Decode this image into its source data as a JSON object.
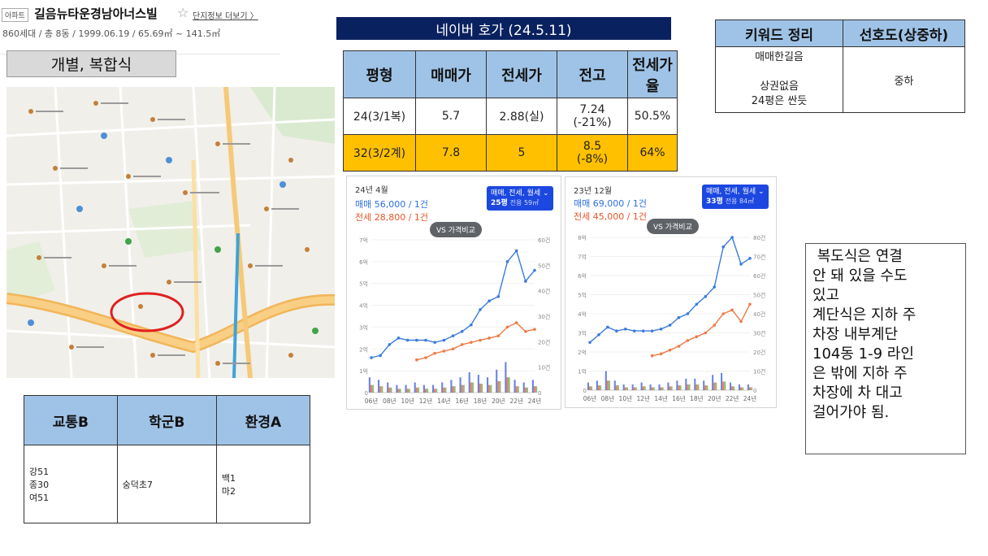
{
  "header": {
    "tag": "아파트",
    "apt_name": "길음뉴타운경남아너스빌",
    "star": "☆",
    "more_link": "단지정보 더보기 〉",
    "info": "860세대 / 총 8동 / 1999.06.19 / 65.69㎡ ~ 141.5㎡"
  },
  "type_label": "개별, 복합식",
  "map": {
    "labels": [
      "길음뉴타운경남아너스빌"
    ]
  },
  "scores": {
    "headers": [
      "교통B",
      "학군B",
      "환경A"
    ],
    "transport_lines": [
      "강51",
      "종30",
      "여51"
    ],
    "school": "숭덕초7",
    "env_lines": [
      "백1",
      "마2"
    ]
  },
  "naver_header": "네이버 호가 (24.5.11)",
  "price_table": {
    "headers": [
      "평형",
      "매매가",
      "전세가",
      "전고",
      "전세가율"
    ],
    "rows": [
      {
        "pyeong": "24(3/1복)",
        "sale": "5.7",
        "jeonse": "2.88(실)",
        "high": "7.24\n(-21%)",
        "ratio": "50.5%"
      },
      {
        "pyeong": "32(3/2계)",
        "sale": "7.8",
        "jeonse": "5",
        "high": "8.5\n(-8%)",
        "ratio": "64%"
      }
    ]
  },
  "keyword_table": {
    "headers": [
      "키워드 정리",
      "선호도(상중하)"
    ],
    "keywords": [
      "매매한길음",
      "",
      "상권없음",
      "24평은 싼듯"
    ],
    "preference": "중하"
  },
  "charts": [
    {
      "period": "24년 4월",
      "sale_line": "매매 56,000 / 1건",
      "rent_line": "전세 28,800 / 1건",
      "filter": "매매, 전세, 월세",
      "size": "25평",
      "size_detail": "전용 59㎡",
      "vs_label": "VS 가격비교",
      "chart_data": {
        "type": "line",
        "x": [
          "06년",
          "07년",
          "08년",
          "09년",
          "10년",
          "11년",
          "12년",
          "13년",
          "14년",
          "15년",
          "16년",
          "17년",
          "18년",
          "19년",
          "20년",
          "21년",
          "22년",
          "23년",
          "24년"
        ],
        "x_tick_labels": [
          "06년",
          "08년",
          "10년",
          "12년",
          "14년",
          "16년",
          "18년",
          "20년",
          "22년",
          "24년"
        ],
        "ylim_left": [
          0,
          7
        ],
        "yticks_left": [
          "0",
          "1억",
          "2억",
          "3억",
          "4억",
          "5억",
          "6억",
          "7억"
        ],
        "ylim_right": [
          0,
          60
        ],
        "yticks_right": [
          "0",
          "10건",
          "20건",
          "30건",
          "40건",
          "50건",
          "60건"
        ],
        "series": [
          {
            "name": "매매",
            "color": "#3a7bdc",
            "values": [
              1.6,
              1.7,
              2.2,
              2.5,
              2.4,
              2.4,
              2.4,
              2.3,
              2.4,
              2.6,
              2.8,
              3.1,
              3.8,
              4.2,
              4.4,
              6.0,
              6.5,
              5.1,
              5.6
            ]
          },
          {
            "name": "전세",
            "color": "#ef7a45",
            "values": [
              null,
              null,
              null,
              null,
              null,
              1.5,
              1.6,
              1.8,
              1.9,
              2.0,
              2.2,
              2.3,
              2.4,
              2.5,
              2.6,
              3.0,
              3.2,
              2.8,
              2.9
            ]
          }
        ],
        "volume": [
          6,
          5,
          4,
          3,
          3,
          4,
          3,
          3,
          4,
          5,
          6,
          8,
          7,
          6,
          9,
          12,
          5,
          4,
          5
        ]
      }
    },
    {
      "period": "23년 12월",
      "sale_line": "매매 69,000 / 1건",
      "rent_line": "전세 45,000 / 1건",
      "filter": "매매, 전세, 월세",
      "size": "33평",
      "size_detail": "전용 84㎡",
      "vs_label": "VS 가격비교",
      "chart_data": {
        "type": "line",
        "x": [
          "06년",
          "07년",
          "08년",
          "09년",
          "10년",
          "11년",
          "12년",
          "13년",
          "14년",
          "15년",
          "16년",
          "17년",
          "18년",
          "19년",
          "20년",
          "21년",
          "22년",
          "23년",
          "24년"
        ],
        "x_tick_labels": [
          "06년",
          "08년",
          "10년",
          "12년",
          "14년",
          "16년",
          "18년",
          "20년",
          "22년",
          "24년"
        ],
        "ylim_left": [
          0,
          8
        ],
        "yticks_left": [
          "0",
          "1억",
          "2억",
          "3억",
          "4억",
          "5억",
          "6억",
          "7억",
          "8억"
        ],
        "ylim_right": [
          0,
          80
        ],
        "yticks_right": [
          "0",
          "10건",
          "20건",
          "30건",
          "40건",
          "50건",
          "60건",
          "70건",
          "80건"
        ],
        "series": [
          {
            "name": "매매",
            "color": "#3a7bdc",
            "values": [
              2.5,
              2.9,
              3.3,
              3.1,
              3.2,
              3.1,
              3.1,
              3.1,
              3.2,
              3.4,
              3.8,
              4.0,
              4.5,
              4.9,
              5.4,
              7.5,
              8.0,
              6.6,
              6.9
            ]
          },
          {
            "name": "전세",
            "color": "#ef7a45",
            "values": [
              null,
              null,
              null,
              null,
              null,
              null,
              null,
              1.8,
              1.9,
              2.1,
              2.3,
              2.6,
              2.8,
              3.0,
              3.4,
              4.0,
              4.2,
              3.6,
              4.5
            ]
          }
        ],
        "volume": [
          4,
          5,
          10,
          5,
          3,
          3,
          4,
          3,
          3,
          4,
          5,
          6,
          6,
          5,
          8,
          9,
          4,
          3,
          3
        ]
      }
    }
  ],
  "note_text": " 복도식은 연결\n안 돼 있을 수도\n있고\n계단식은 지하 주\n차장 내부계단\n104동 1-9 라인\n은 밖에 지하 주\n차장에 차 대고\n걸어가야 됨."
}
